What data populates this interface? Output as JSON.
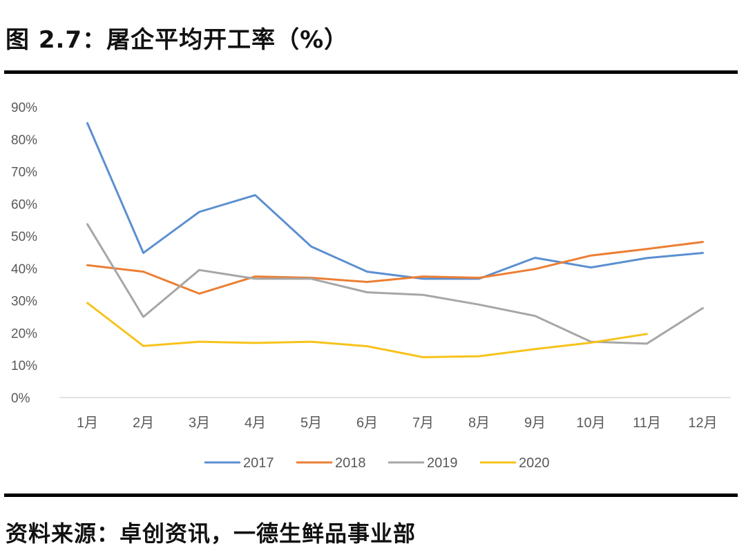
{
  "figure": {
    "title": "图 2.7：屠企平均开工率（%）",
    "source": "资料来源：卓创资讯，一德生鲜品事业部"
  },
  "chart_data": {
    "type": "line",
    "categories": [
      "1月",
      "2月",
      "3月",
      "4月",
      "5月",
      "6月",
      "7月",
      "8月",
      "9月",
      "10月",
      "11月",
      "12月"
    ],
    "y_ticks": [
      "0%",
      "10%",
      "20%",
      "30%",
      "40%",
      "50%",
      "60%",
      "70%",
      "80%",
      "90%"
    ],
    "ylim": [
      0,
      90
    ],
    "grid": false,
    "legend_position": "bottom",
    "series": [
      {
        "name": "2017",
        "color": "#5b8fd0",
        "values": [
          85,
          44.8,
          57.5,
          62.7,
          46.8,
          39,
          36.8,
          36.8,
          43.3,
          40.3,
          43.2,
          44.8
        ]
      },
      {
        "name": "2018",
        "color": "#ec7e33",
        "values": [
          41,
          39,
          32.2,
          37.5,
          37.1,
          35.8,
          37.5,
          37.1,
          39.8,
          44,
          46,
          48.2
        ]
      },
      {
        "name": "2019",
        "color": "#a6a6a6",
        "values": [
          53.7,
          25,
          39.5,
          36.8,
          36.8,
          32.6,
          31.8,
          28.8,
          25.3,
          17.3,
          16.7,
          27.7
        ]
      },
      {
        "name": "2020",
        "color": "#f7c21b",
        "values": [
          29.3,
          16,
          17.3,
          16.9,
          17.3,
          15.9,
          12.5,
          12.8,
          15,
          17,
          19.7,
          null
        ]
      }
    ]
  }
}
